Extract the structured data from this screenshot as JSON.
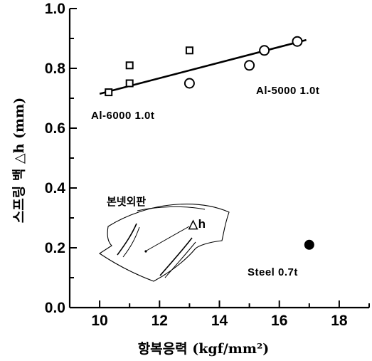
{
  "chart_data": {
    "type": "scatter",
    "xlabel": "항복응력 (kgf/mm²)",
    "ylabel": "스프링 백 △h (mm)",
    "xlim": [
      9,
      19
    ],
    "ylim": [
      0,
      1.0
    ],
    "x_ticks": [
      10,
      12,
      14,
      16,
      18
    ],
    "y_ticks": [
      0.0,
      0.2,
      0.4,
      0.6,
      0.8,
      1.0
    ],
    "x_tick_labels": [
      "10",
      "12",
      "14",
      "16",
      "18"
    ],
    "y_tick_labels": [
      "0.0",
      "0.2",
      "0.4",
      "0.6",
      "0.8",
      "1.0"
    ],
    "grid": false,
    "series": [
      {
        "name": "Al-6000 1.0t",
        "marker": "square-open",
        "x": [
          10.3,
          11.0,
          11.0,
          13.0
        ],
        "y": [
          0.72,
          0.75,
          0.81,
          0.86
        ]
      },
      {
        "name": "Al-5000 1.0t",
        "marker": "circle-open",
        "x": [
          13.0,
          15.0,
          15.5,
          16.6
        ],
        "y": [
          0.75,
          0.81,
          0.86,
          0.89
        ]
      },
      {
        "name": "Steel 0.7t",
        "marker": "circle-filled",
        "x": [
          17.0
        ],
        "y": [
          0.21
        ]
      }
    ],
    "trend_line": {
      "x": [
        10.0,
        16.9
      ],
      "y": [
        0.715,
        0.895
      ]
    },
    "annotations": {
      "al6000": "Al-6000 1.0t",
      "al5000": "Al-5000 1.0t",
      "steel": "Steel 0.7t",
      "inset_title": "본넷외판",
      "inset_delta": "△h"
    }
  }
}
